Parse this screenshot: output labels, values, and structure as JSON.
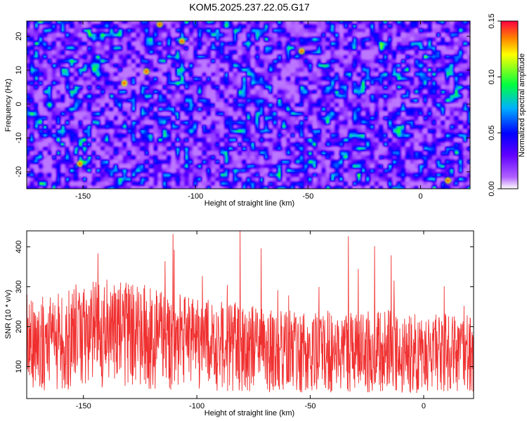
{
  "title": "KOM5.2025.237.22.05.G17",
  "colors": {
    "snr_line": "#f03030",
    "frame": "#000000",
    "background": "#ffffff"
  },
  "chart_data": [
    {
      "type": "heatmap",
      "xlabel": "Height of straight line (km)",
      "ylabel": "Frequency (Hz)",
      "xlim": [
        -175,
        22
      ],
      "ylim": [
        -25,
        24.5
      ],
      "xticks": [
        -150,
        -100,
        -50,
        0
      ],
      "yticks": [
        -20,
        -10,
        0,
        10,
        20
      ],
      "colorbar": {
        "label": "Normalized spectral amplitude",
        "range": [
          0.0,
          0.15
        ],
        "ticks": [
          "0.00",
          "0.05",
          "0.10",
          "0.15"
        ],
        "colormap": [
          "#ffffff",
          "#8000ff",
          "#0000ff",
          "#00c8ff",
          "#00ff00",
          "#ffff00",
          "#ff0000"
        ]
      },
      "description_values": {
        "typical_amplitude": 0.04,
        "peak_amplitude": 0.14
      }
    },
    {
      "type": "line",
      "xlabel": "Height of straight line (km)",
      "ylabel": "SNR (10 * v/v)",
      "xlim": [
        -175,
        22
      ],
      "ylim": [
        20,
        440
      ],
      "xticks": [
        -150,
        -100,
        -50,
        0
      ],
      "yticks": [
        100,
        200,
        300,
        400
      ],
      "series": [
        {
          "x_start": -175,
          "x_end": 22,
          "num_points": 1400,
          "mean_by_region": [
            {
              "x": -175,
              "mean": 150
            },
            {
              "x": -140,
              "mean": 185
            },
            {
              "x": -100,
              "mean": 160
            },
            {
              "x": -60,
              "mean": 135
            },
            {
              "x": -20,
              "mean": 140
            },
            {
              "x": 22,
              "mean": 130
            }
          ],
          "min": 25,
          "max": 440
        }
      ]
    }
  ]
}
